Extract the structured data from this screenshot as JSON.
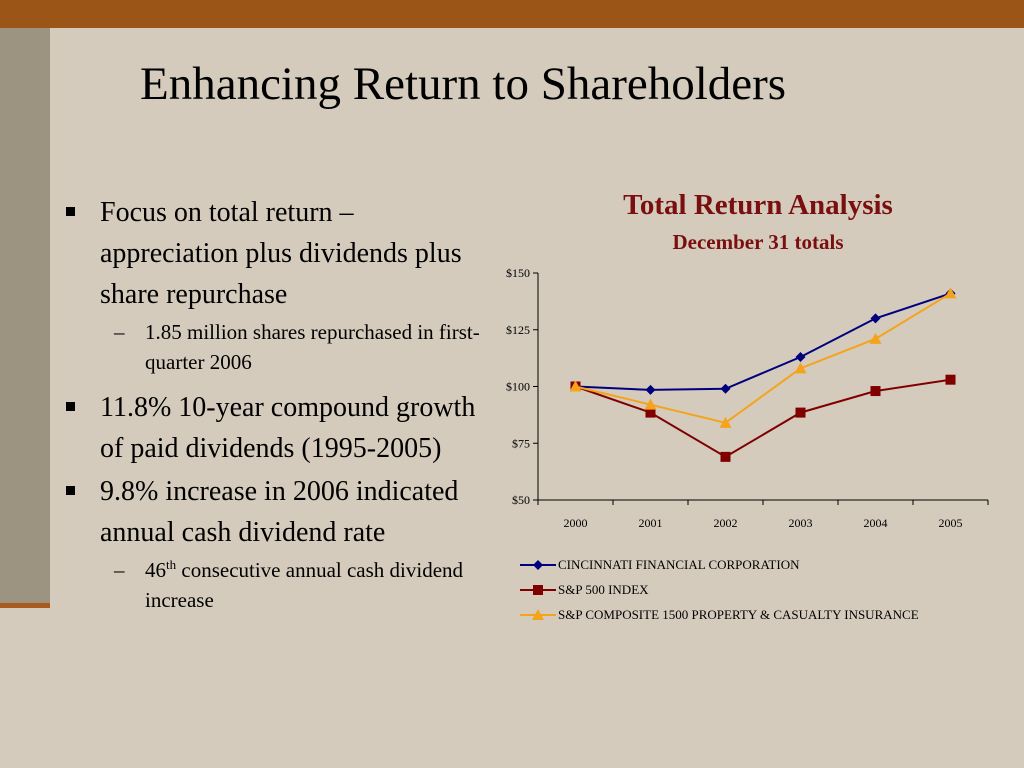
{
  "slide": {
    "title": "Enhancing Return to Shareholders",
    "bullets": [
      {
        "text": "Focus on total return – appreciation plus dividends plus share repurchase",
        "sub": [
          {
            "text": "1.85 million shares repurchased in first-quarter  2006"
          }
        ]
      },
      {
        "text": "11.8% 10-year compound growth of paid dividends (1995-2005)",
        "sub": []
      },
      {
        "text": "9.8% increase in 2006 indicated annual cash dividend rate",
        "sub": [
          {
            "pre": "46",
            "sup": "th",
            "post": " consecutive annual cash dividend increase"
          }
        ]
      }
    ]
  },
  "chart_data": {
    "type": "line",
    "title": "Total Return Analysis",
    "subtitle": "December 31 totals",
    "xlabel": "",
    "ylabel": "",
    "x": [
      "2000",
      "2001",
      "2002",
      "2003",
      "2004",
      "2005"
    ],
    "ylim": [
      50,
      150
    ],
    "yticks": [
      50,
      75,
      100,
      125,
      150
    ],
    "ytick_labels": [
      "$50",
      "$75",
      "$100",
      "$125",
      "$150"
    ],
    "grid": false,
    "legend_position": "bottom",
    "series": [
      {
        "name": "CINCINNATI FINANCIAL CORPORATION",
        "values": [
          100,
          98.5,
          99,
          113,
          130,
          141
        ],
        "color": "#00007f",
        "marker": "diamond"
      },
      {
        "name": "S&P 500 INDEX",
        "values": [
          100,
          88.5,
          69,
          88.5,
          98,
          103
        ],
        "color": "#800000",
        "marker": "square"
      },
      {
        "name": "S&P COMPOSITE 1500 PROPERTY & CASUALTY INSURANCE",
        "values": [
          100,
          92,
          84,
          108,
          121,
          141
        ],
        "color": "#f5a31a",
        "marker": "triangle"
      }
    ]
  }
}
